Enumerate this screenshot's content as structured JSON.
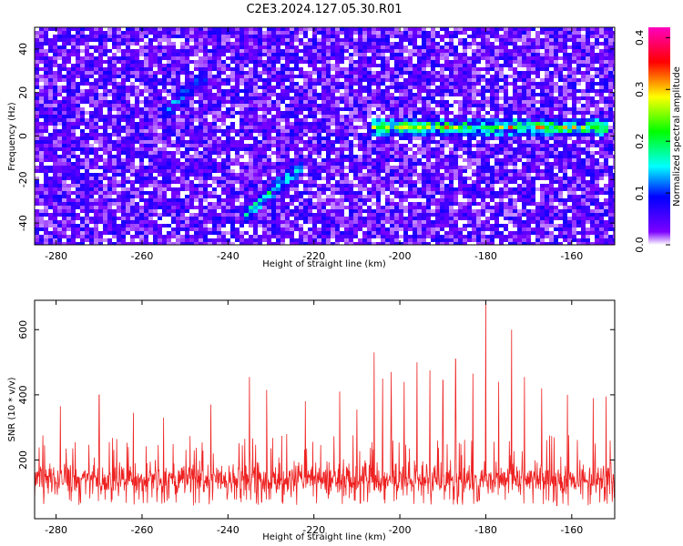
{
  "title": "C2E3.2024.127.05.30.R01",
  "chart_data": [
    {
      "type": "heatmap",
      "xlabel": "Height of straight line (km)",
      "ylabel": "Frequency (Hz)",
      "xlim": [
        -285,
        -150
      ],
      "ylim": [
        -50,
        50
      ],
      "x_ticks": [
        -280,
        -260,
        -240,
        -220,
        -200,
        -180,
        -160
      ],
      "x_tick_labels": [
        "-280",
        "-260",
        "-240",
        "-220",
        "-200",
        "-180",
        "-160"
      ],
      "y_ticks": [
        -40,
        -20,
        0,
        20,
        40
      ],
      "y_tick_labels": [
        "-40",
        "-20",
        "0",
        "20",
        "40"
      ],
      "colorbar": {
        "label": "Normalized spectral amplitude",
        "range": [
          0.0,
          0.42
        ],
        "ticks": [
          0.0,
          0.1,
          0.2,
          0.3,
          0.4
        ],
        "tick_labels": [
          "0.0",
          "0.1",
          "0.2",
          "0.3",
          "0.4"
        ],
        "colormap": [
          "#ffffff",
          "#7c00ff",
          "#0000ff",
          "#00ffff",
          "#00ff00",
          "#ffff00",
          "#ff0000",
          "#ff00c0"
        ]
      },
      "background_noise_amplitude": 0.04,
      "features": [
        {
          "x_start": -207,
          "x_end": -151,
          "freq_hz": 4,
          "amplitude": 0.22
        },
        {
          "x_start": -236,
          "x_end": -222,
          "freq_start_hz": -36,
          "freq_end_hz": -12,
          "amplitude": 0.14
        },
        {
          "x_start": -255,
          "x_end": -245,
          "freq_start_hz": 10,
          "freq_end_hz": 28,
          "amplitude": 0.1
        }
      ],
      "grid": false
    },
    {
      "type": "line",
      "xlabel": "Height of straight line (km)",
      "ylabel": "SNR (10 * v/v)",
      "xlim": [
        -285,
        -150
      ],
      "ylim": [
        20,
        690
      ],
      "x_ticks": [
        -280,
        -260,
        -240,
        -220,
        -200,
        -180,
        -160
      ],
      "x_tick_labels": [
        "-280",
        "-260",
        "-240",
        "-220",
        "-200",
        "-180",
        "-160"
      ],
      "y_ticks": [
        200,
        400,
        600
      ],
      "y_tick_labels": [
        "200",
        "400",
        "600"
      ],
      "line_color": "#ee2222",
      "baseline_snr": 140,
      "noise_band": [
        60,
        280
      ],
      "peaks": [
        {
          "x": -279,
          "y": 365
        },
        {
          "x": -270,
          "y": 400
        },
        {
          "x": -262,
          "y": 345
        },
        {
          "x": -255,
          "y": 330
        },
        {
          "x": -244,
          "y": 370
        },
        {
          "x": -235,
          "y": 455
        },
        {
          "x": -231,
          "y": 415
        },
        {
          "x": -222,
          "y": 380
        },
        {
          "x": -214,
          "y": 410
        },
        {
          "x": -210,
          "y": 355
        },
        {
          "x": -206,
          "y": 530
        },
        {
          "x": -204,
          "y": 450
        },
        {
          "x": -202,
          "y": 470
        },
        {
          "x": -199,
          "y": 440
        },
        {
          "x": -196,
          "y": 500
        },
        {
          "x": -193,
          "y": 475
        },
        {
          "x": -190,
          "y": 445
        },
        {
          "x": -187,
          "y": 510
        },
        {
          "x": -183,
          "y": 465
        },
        {
          "x": -180,
          "y": 680
        },
        {
          "x": -177,
          "y": 440
        },
        {
          "x": -174,
          "y": 600
        },
        {
          "x": -171,
          "y": 455
        },
        {
          "x": -167,
          "y": 420
        },
        {
          "x": -161,
          "y": 400
        },
        {
          "x": -155,
          "y": 390
        },
        {
          "x": -152,
          "y": 395
        }
      ],
      "grid": false
    }
  ]
}
